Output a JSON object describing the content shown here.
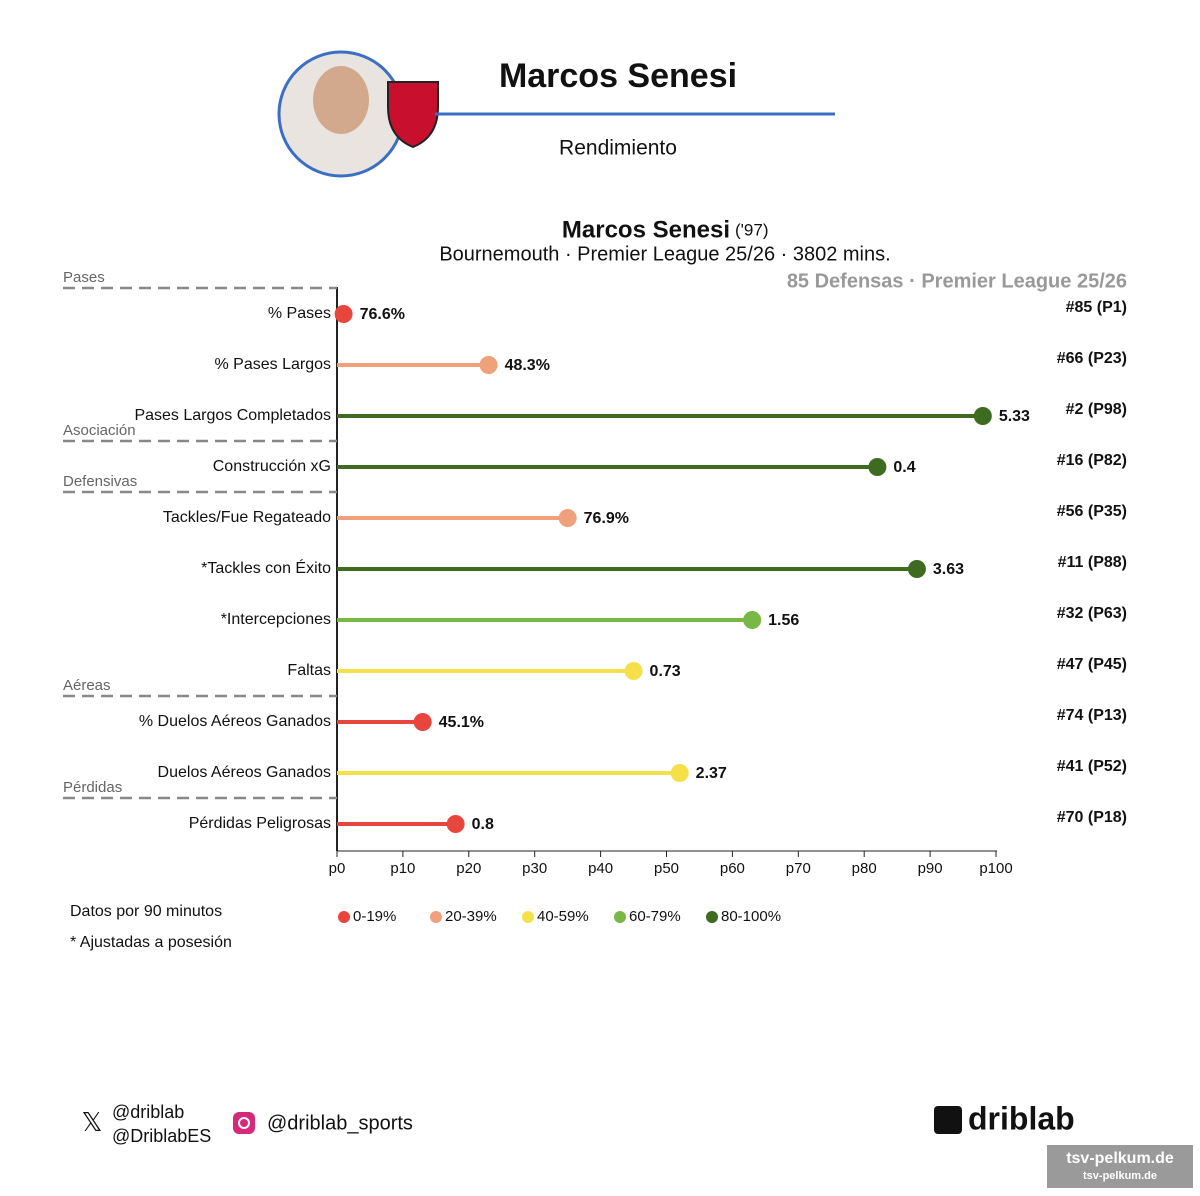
{
  "header": {
    "title": "Marcos Senesi",
    "subtitle": "Rendimiento"
  },
  "chart_data": {
    "type": "lollipop",
    "title": "Marcos Senesi",
    "title_note": "('97)",
    "subtitle": "Bournemouth · Premier League 25/26 · 3802 mins.",
    "comparison": "85 Defensas · Premier League 25/26",
    "xlim": [
      0,
      100
    ],
    "xticks": [
      {
        "value": 0,
        "label": "p0"
      },
      {
        "value": 10,
        "label": "p10"
      },
      {
        "value": 20,
        "label": "p20"
      },
      {
        "value": 30,
        "label": "p30"
      },
      {
        "value": 40,
        "label": "p40"
      },
      {
        "value": 50,
        "label": "p50"
      },
      {
        "value": 60,
        "label": "p60"
      },
      {
        "value": 70,
        "label": "p70"
      },
      {
        "value": 80,
        "label": "p80"
      },
      {
        "value": 90,
        "label": "p90"
      },
      {
        "value": 100,
        "label": "p100"
      }
    ],
    "groups": [
      {
        "name": "Pases",
        "rows": [
          {
            "label": "% Pases",
            "value": 1,
            "stat": "76.6%",
            "rank": "#85 (P1)",
            "color": "#e8453c"
          },
          {
            "label": "% Pases Largos",
            "value": 23,
            "stat": "48.3%",
            "rank": "#66 (P23)",
            "color": "#f0a07a"
          },
          {
            "label": "Pases Largos Completados",
            "value": 98,
            "stat": "5.33",
            "rank": "#2 (P98)",
            "color": "#3e6b20"
          }
        ]
      },
      {
        "name": "Asociación",
        "rows": [
          {
            "label": "Construcción xG",
            "value": 82,
            "stat": "0.4",
            "rank": "#16 (P82)",
            "color": "#3e6b20"
          }
        ]
      },
      {
        "name": "Defensivas",
        "rows": [
          {
            "label": "Tackles/Fue Regateado",
            "value": 35,
            "stat": "76.9%",
            "rank": "#56 (P35)",
            "color": "#f0a07a"
          },
          {
            "label": "*Tackles con Éxito",
            "value": 88,
            "stat": "3.63",
            "rank": "#11 (P88)",
            "color": "#3e6b20"
          },
          {
            "label": "*Intercepciones",
            "value": 63,
            "stat": "1.56",
            "rank": "#32 (P63)",
            "color": "#79b844"
          },
          {
            "label": "Faltas",
            "value": 45,
            "stat": "0.73",
            "rank": "#47 (P45)",
            "color": "#f5e04a"
          }
        ]
      },
      {
        "name": "Aéreas",
        "rows": [
          {
            "label": "% Duelos Aéreos Ganados",
            "value": 13,
            "stat": "45.1%",
            "rank": "#74 (P13)",
            "color": "#e8453c"
          },
          {
            "label": "Duelos Aéreos Ganados",
            "value": 52,
            "stat": "2.37",
            "rank": "#41 (P52)",
            "color": "#f5e04a"
          }
        ]
      },
      {
        "name": "Pérdidas",
        "rows": [
          {
            "label": "Pérdidas Peligrosas",
            "value": 18,
            "stat": "0.8",
            "rank": "#70 (P18)",
            "color": "#e8453c"
          }
        ]
      }
    ],
    "legend": [
      {
        "label": "0-19%",
        "color": "#e8453c"
      },
      {
        "label": "20-39%",
        "color": "#f0a07a"
      },
      {
        "label": "40-59%",
        "color": "#f5e04a"
      },
      {
        "label": "60-79%",
        "color": "#79b844"
      },
      {
        "label": "80-100%",
        "color": "#3e6b20"
      }
    ],
    "notes": [
      "Datos por 90 minutos",
      "* Ajustadas a posesión"
    ]
  },
  "footer": {
    "twitter": [
      "@driblab",
      "@DriblabES"
    ],
    "instagram": "@driblab_sports",
    "logo": "driblab",
    "watermark": [
      "tsv-pelkum.de",
      "tsv-pelkum.de"
    ]
  }
}
